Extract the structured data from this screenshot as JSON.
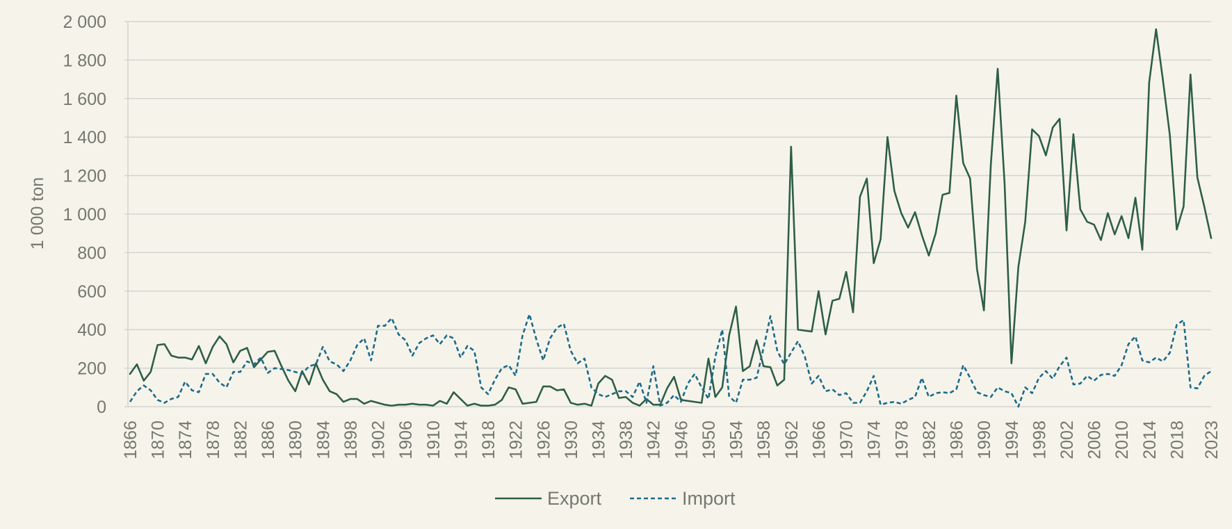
{
  "chart_data": {
    "type": "line",
    "title": "",
    "xlabel": "",
    "ylabel": "1 000 ton",
    "xlim": [
      1866,
      2023
    ],
    "ylim": [
      0,
      2000
    ],
    "yticks": [
      0,
      200,
      400,
      600,
      800,
      1000,
      1200,
      1400,
      1600,
      1800,
      2000
    ],
    "ytick_labels": [
      "0",
      "200",
      "400",
      "600",
      "800",
      "1 000",
      "1 200",
      "1 400",
      "1 600",
      "1 800",
      "2 000"
    ],
    "xtick_labels": [
      "1866",
      "1870",
      "1874",
      "1878",
      "1882",
      "1886",
      "1890",
      "1894",
      "1898",
      "1902",
      "1906",
      "1910",
      "1914",
      "1918",
      "1922",
      "1926",
      "1930",
      "1934",
      "1938",
      "1942",
      "1946",
      "1950",
      "1954",
      "1958",
      "1962",
      "1966",
      "1970",
      "1974",
      "1978",
      "1982",
      "1986",
      "1990",
      "1994",
      "1998",
      "2002",
      "2006",
      "2010",
      "2014",
      "2018",
      "2023"
    ],
    "grid": true,
    "legend_position": "bottom-center",
    "colors": {
      "background": "#f6f4ea",
      "grid": "#d2d3cf",
      "text": "#74786f"
    },
    "x": [
      1866,
      1867,
      1868,
      1869,
      1870,
      1871,
      1872,
      1873,
      1874,
      1875,
      1876,
      1877,
      1878,
      1879,
      1880,
      1881,
      1882,
      1883,
      1884,
      1885,
      1886,
      1887,
      1888,
      1889,
      1890,
      1891,
      1892,
      1893,
      1894,
      1895,
      1896,
      1897,
      1898,
      1899,
      1900,
      1901,
      1902,
      1903,
      1904,
      1905,
      1906,
      1907,
      1908,
      1909,
      1910,
      1911,
      1912,
      1913,
      1914,
      1915,
      1916,
      1917,
      1918,
      1919,
      1920,
      1921,
      1922,
      1923,
      1924,
      1925,
      1926,
      1927,
      1928,
      1929,
      1930,
      1931,
      1932,
      1933,
      1934,
      1935,
      1936,
      1937,
      1938,
      1939,
      1940,
      1941,
      1942,
      1943,
      1944,
      1945,
      1946,
      1947,
      1948,
      1949,
      1950,
      1951,
      1952,
      1953,
      1954,
      1955,
      1956,
      1957,
      1958,
      1959,
      1960,
      1961,
      1962,
      1963,
      1964,
      1965,
      1966,
      1967,
      1968,
      1969,
      1970,
      1971,
      1972,
      1973,
      1974,
      1975,
      1976,
      1977,
      1978,
      1979,
      1980,
      1981,
      1982,
      1983,
      1984,
      1985,
      1986,
      1987,
      1988,
      1989,
      1990,
      1991,
      1992,
      1993,
      1994,
      1995,
      1996,
      1997,
      1998,
      1999,
      2000,
      2001,
      2002,
      2003,
      2004,
      2005,
      2006,
      2007,
      2008,
      2009,
      2010,
      2011,
      2012,
      2013,
      2014,
      2015,
      2016,
      2017,
      2018,
      2019,
      2020,
      2021,
      2022,
      2023
    ],
    "series": [
      {
        "name": "Export",
        "color": "#2e5e48",
        "dash": "solid",
        "values": [
          170,
          220,
          135,
          180,
          320,
          325,
          265,
          255,
          255,
          245,
          315,
          225,
          310,
          365,
          325,
          230,
          290,
          305,
          205,
          245,
          285,
          290,
          210,
          135,
          80,
          185,
          115,
          225,
          140,
          80,
          65,
          25,
          40,
          40,
          15,
          30,
          20,
          10,
          5,
          10,
          10,
          15,
          10,
          10,
          5,
          30,
          15,
          75,
          40,
          5,
          15,
          5,
          5,
          10,
          35,
          100,
          90,
          15,
          20,
          25,
          105,
          105,
          85,
          90,
          20,
          10,
          15,
          5,
          120,
          160,
          140,
          45,
          50,
          20,
          5,
          40,
          10,
          10,
          95,
          155,
          35,
          30,
          25,
          20,
          250,
          50,
          100,
          370,
          520,
          185,
          210,
          345,
          210,
          205,
          110,
          140,
          1350,
          400,
          395,
          390,
          600,
          375,
          550,
          560,
          700,
          490,
          1090,
          1185,
          745,
          870,
          1400,
          1120,
          1005,
          930,
          1010,
          890,
          785,
          900,
          1100,
          1110,
          1615,
          1265,
          1185,
          715,
          500,
          1255,
          1755,
          1160,
          225,
          725,
          960,
          1440,
          1405,
          1305,
          1450,
          1495,
          915,
          1415,
          1025,
          960,
          945,
          865,
          1005,
          895,
          990,
          875,
          1085,
          815,
          1685,
          1960,
          1695,
          1410,
          920,
          1040,
          1725,
          1190,
          1040,
          875
        ]
      },
      {
        "name": "Import",
        "color": "#1b6a8c",
        "dash": "dashed",
        "values": [
          25,
          80,
          110,
          85,
          35,
          20,
          40,
          50,
          130,
          85,
          75,
          170,
          170,
          125,
          100,
          180,
          180,
          235,
          220,
          255,
          175,
          200,
          195,
          190,
          180,
          170,
          210,
          220,
          310,
          235,
          220,
          185,
          240,
          320,
          355,
          240,
          420,
          420,
          460,
          375,
          345,
          265,
          330,
          355,
          370,
          325,
          370,
          355,
          255,
          315,
          290,
          100,
          65,
          140,
          200,
          215,
          160,
          370,
          480,
          350,
          240,
          355,
          410,
          430,
          290,
          225,
          250,
          100,
          65,
          50,
          65,
          80,
          80,
          50,
          130,
          20,
          210,
          5,
          20,
          60,
          25,
          120,
          170,
          100,
          40,
          260,
          400,
          55,
          20,
          140,
          140,
          150,
          305,
          470,
          290,
          220,
          280,
          340,
          260,
          120,
          160,
          80,
          90,
          60,
          70,
          20,
          20,
          80,
          160,
          10,
          20,
          25,
          15,
          35,
          50,
          150,
          50,
          70,
          75,
          70,
          90,
          215,
          150,
          75,
          60,
          50,
          100,
          80,
          70,
          0,
          100,
          70,
          150,
          185,
          145,
          210,
          255,
          115,
          120,
          160,
          135,
          165,
          170,
          160,
          215,
          325,
          365,
          240,
          230,
          255,
          235,
          280,
          425,
          450,
          100,
          95,
          160,
          185
        ]
      }
    ]
  }
}
